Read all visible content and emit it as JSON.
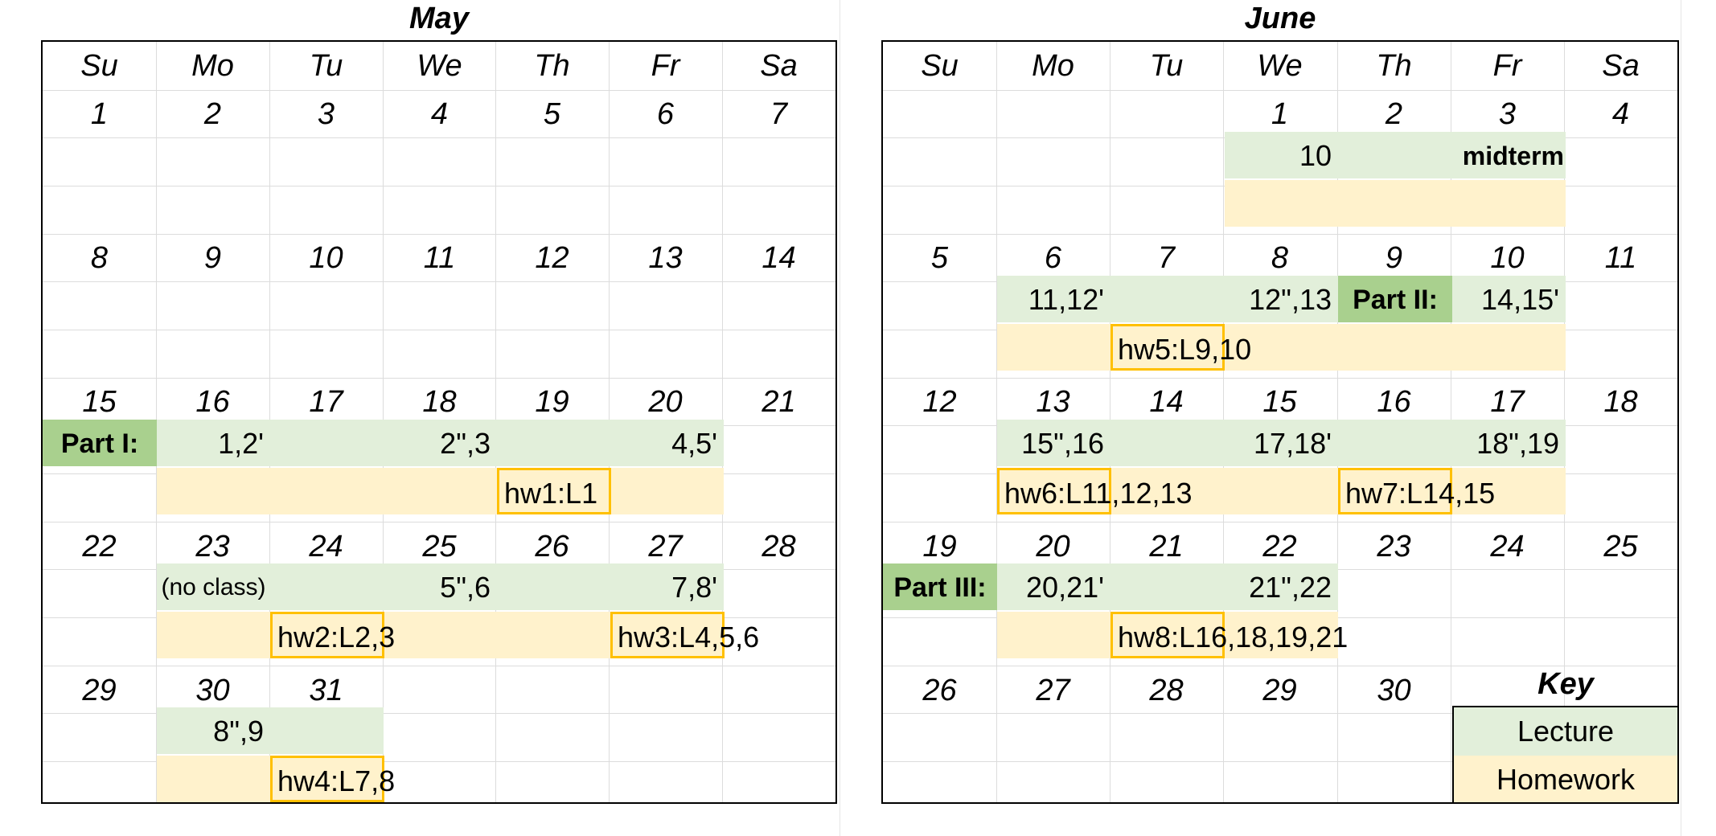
{
  "may": {
    "title": "May",
    "dows": [
      "Su",
      "Mo",
      "Tu",
      "We",
      "Th",
      "Fr",
      "Sa"
    ],
    "weeks": [
      [
        "1",
        "2",
        "3",
        "4",
        "5",
        "6",
        "7"
      ],
      [
        "8",
        "9",
        "10",
        "11",
        "12",
        "13",
        "14"
      ],
      [
        "15",
        "16",
        "17",
        "18",
        "19",
        "20",
        "21"
      ],
      [
        "22",
        "23",
        "24",
        "25",
        "26",
        "27",
        "28"
      ],
      [
        "29",
        "30",
        "31",
        "",
        "",
        "",
        ""
      ]
    ],
    "part": "Part I:",
    "lec": {
      "w3_mo": "1,2'",
      "w3_we": "2\",3",
      "w3_fr": "4,5'",
      "w4_mo": "(no class)",
      "w4_we": "5\",6",
      "w4_fr": "7,8'",
      "w5_mo": "8\",9"
    },
    "hw": {
      "hw1": "hw1:L1",
      "hw2": "hw2:L2,3",
      "hw3": "hw3:L4,5,6",
      "hw4": "hw4:L7,8"
    }
  },
  "june": {
    "title": "June",
    "dows": [
      "Su",
      "Mo",
      "Tu",
      "We",
      "Th",
      "Fr",
      "Sa"
    ],
    "weeks": [
      [
        "",
        "",
        "",
        "1",
        "2",
        "3",
        "4"
      ],
      [
        "5",
        "6",
        "7",
        "8",
        "9",
        "10",
        "11"
      ],
      [
        "12",
        "13",
        "14",
        "15",
        "16",
        "17",
        "18"
      ],
      [
        "19",
        "20",
        "21",
        "22",
        "23",
        "24",
        "25"
      ],
      [
        "26",
        "27",
        "28",
        "29",
        "30",
        "",
        ""
      ]
    ],
    "part2": "Part II:",
    "part3": "Part III:",
    "lec": {
      "w1_we": "10",
      "w1_fr": "midterm",
      "w2_mo": "11,12'",
      "w2_we": "12\",13",
      "w2_fr": "14,15'",
      "w3_mo": "15\",16",
      "w3_we": "17,18'",
      "w3_fr": "18\",19",
      "w4_mo": "20,21'",
      "w4_we": "21\",22"
    },
    "hw": {
      "hw5": "hw5:L9,10",
      "hw6": "hw6:L11,12,13",
      "hw7": "hw7:L14,15",
      "hw8": "hw8:L16,18,19,21"
    }
  },
  "key": {
    "title": "Key",
    "lecture": "Lecture",
    "homework": "Homework"
  },
  "colors": {
    "lecture": "#e2efda",
    "homework": "#fff2cc",
    "part": "#a9d08e",
    "hw_border": "#ffc000"
  }
}
